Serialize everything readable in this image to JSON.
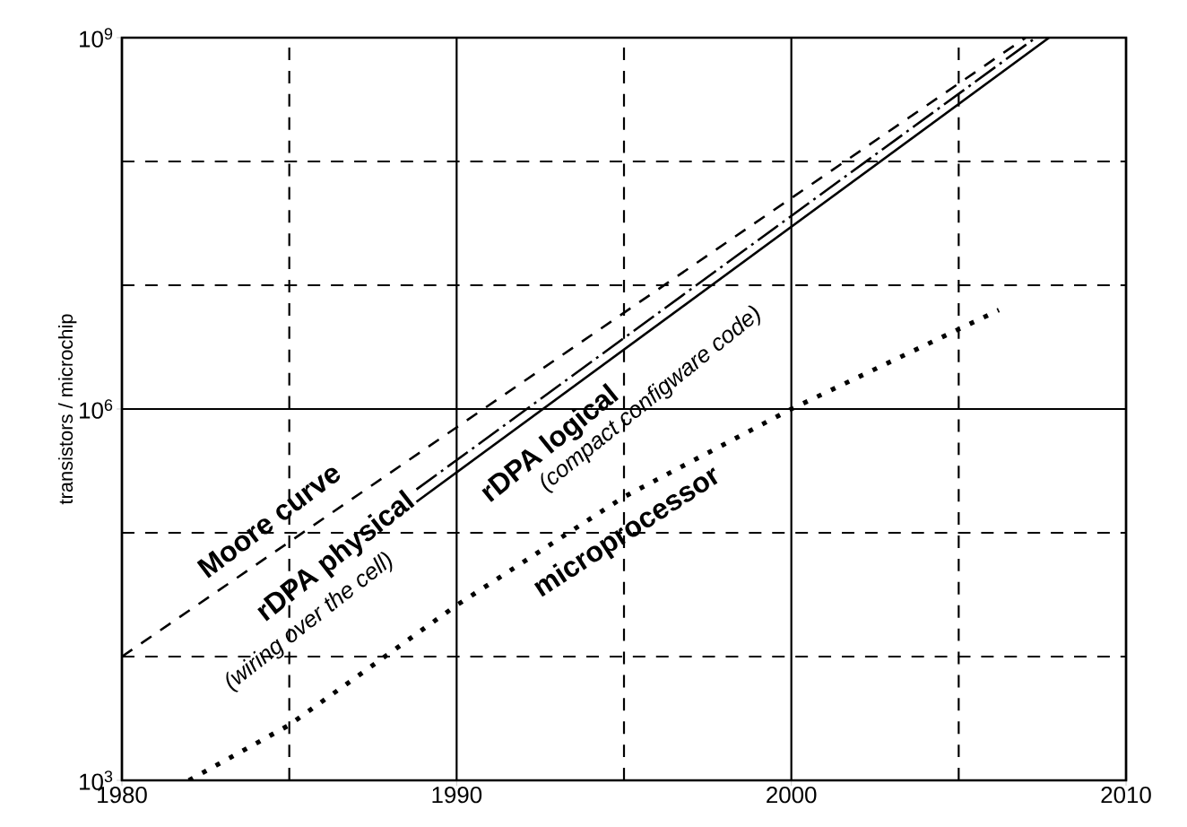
{
  "chart_data": {
    "type": "line",
    "ylabel": "transistors / microchip",
    "log": "y",
    "grid": true,
    "xlim": [
      1980,
      2010
    ],
    "xticks": [
      1980,
      {
        "value": 1985,
        "label": null
      },
      1990,
      {
        "value": 1995,
        "label": null
      },
      2000,
      {
        "value": 2005,
        "label": null
      },
      2010
    ],
    "ylim": [
      1000,
      1000000000
    ],
    "yticks": [
      {
        "value": 1000,
        "label": "10$^{3}$"
      },
      {
        "value": 10000,
        "label": null
      },
      {
        "value": 100000,
        "label": null
      },
      {
        "value": 1000000,
        "label": "10$^{6}$"
      },
      {
        "value": 10000000,
        "label": null
      },
      {
        "value": 100000000,
        "label": null
      },
      {
        "value": 1000000000,
        "label": "10$^{9}$"
      }
    ],
    "series": [
      {
        "name": "Moore curve",
        "color": "#000000",
        "line_style": "dashed",
        "x": [
          1980,
          2007
        ],
        "values": [
          10000,
          1000000000
        ]
      },
      {
        "name": "rDPA physical",
        "color": "#000000",
        "line_style": "dashdot",
        "x": [
          1988.8,
          2007.3
        ],
        "values": [
          224000,
          1000000000
        ]
      },
      {
        "name": "rDPA logical",
        "color": "#000000",
        "line_style": "solid",
        "x": [
          1988.8,
          2007.7
        ],
        "values": [
          178000,
          1000000000
        ]
      },
      {
        "name": "microprocessor",
        "color": "#000000",
        "line_style": "dotted",
        "x": [
          1982,
          1985,
          1990,
          1995,
          2000,
          2006.2
        ],
        "values": [
          1000,
          2800,
          26000,
          195000,
          1000000,
          6300000
        ]
      }
    ],
    "annotations": [
      "(wiring over the cell)",
      "(compact configware code)"
    ]
  }
}
